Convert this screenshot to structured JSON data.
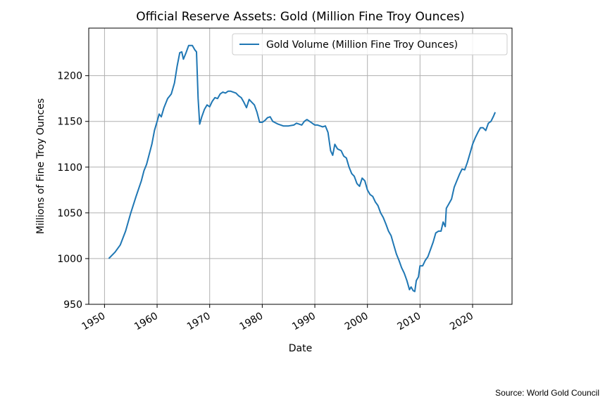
{
  "chart_data": {
    "type": "line",
    "title": "Official Reserve Assets: Gold (Million Fine Troy Ounces)",
    "xlabel": "Date",
    "ylabel": "Millions of Fine Troy Ounces",
    "xlim": [
      1947,
      2027.5
    ],
    "ylim": [
      950,
      1252
    ],
    "xticks": [
      1950,
      1960,
      1970,
      1980,
      1990,
      2000,
      2010,
      2020
    ],
    "yticks": [
      950,
      1000,
      1050,
      1100,
      1150,
      1200
    ],
    "grid": true,
    "legend_position": "top-right",
    "series": [
      {
        "name": "Gold Volume (Million Fine Troy Ounces)",
        "color": "#1f77b4",
        "points": [
          [
            1950.8,
            1000
          ],
          [
            1952,
            1007
          ],
          [
            1953,
            1015
          ],
          [
            1954,
            1030
          ],
          [
            1955,
            1050
          ],
          [
            1956,
            1068
          ],
          [
            1957,
            1085
          ],
          [
            1957.5,
            1096
          ],
          [
            1958,
            1103
          ],
          [
            1959,
            1125
          ],
          [
            1959.5,
            1140
          ],
          [
            1960,
            1150
          ],
          [
            1960.4,
            1158
          ],
          [
            1960.8,
            1155
          ],
          [
            1961.3,
            1165
          ],
          [
            1962,
            1175
          ],
          [
            1962.7,
            1180
          ],
          [
            1963.3,
            1192
          ],
          [
            1963.8,
            1210
          ],
          [
            1964.3,
            1225
          ],
          [
            1964.7,
            1226
          ],
          [
            1965,
            1218
          ],
          [
            1965.5,
            1225
          ],
          [
            1966,
            1233
          ],
          [
            1966.7,
            1233
          ],
          [
            1967.2,
            1228
          ],
          [
            1967.5,
            1226
          ],
          [
            1967.8,
            1175
          ],
          [
            1968.1,
            1147
          ],
          [
            1968.5,
            1155
          ],
          [
            1969,
            1163
          ],
          [
            1969.5,
            1168
          ],
          [
            1970,
            1166
          ],
          [
            1970.5,
            1172
          ],
          [
            1971,
            1176
          ],
          [
            1971.5,
            1175
          ],
          [
            1972,
            1180
          ],
          [
            1972.5,
            1182
          ],
          [
            1973,
            1181
          ],
          [
            1973.5,
            1183
          ],
          [
            1974,
            1183
          ],
          [
            1975,
            1181
          ],
          [
            1975.5,
            1178
          ],
          [
            1976,
            1176
          ],
          [
            1976.5,
            1171
          ],
          [
            1977,
            1165
          ],
          [
            1977.5,
            1174
          ],
          [
            1978,
            1171
          ],
          [
            1978.5,
            1168
          ],
          [
            1979,
            1160
          ],
          [
            1979.5,
            1149
          ],
          [
            1980,
            1149
          ],
          [
            1980.5,
            1151
          ],
          [
            1981,
            1154
          ],
          [
            1981.5,
            1155
          ],
          [
            1982,
            1150
          ],
          [
            1983,
            1147
          ],
          [
            1984,
            1145
          ],
          [
            1985,
            1145
          ],
          [
            1986,
            1146
          ],
          [
            1986.5,
            1148
          ],
          [
            1987,
            1147
          ],
          [
            1987.5,
            1146
          ],
          [
            1988,
            1150
          ],
          [
            1988.5,
            1152
          ],
          [
            1989,
            1150
          ],
          [
            1989.5,
            1148
          ],
          [
            1990,
            1146
          ],
          [
            1990.5,
            1146
          ],
          [
            1991,
            1145
          ],
          [
            1991.5,
            1144
          ],
          [
            1992,
            1145
          ],
          [
            1992.5,
            1138
          ],
          [
            1993,
            1118
          ],
          [
            1993.4,
            1113
          ],
          [
            1993.8,
            1125
          ],
          [
            1994.3,
            1120
          ],
          [
            1995,
            1118
          ],
          [
            1995.5,
            1112
          ],
          [
            1996,
            1110
          ],
          [
            1996.5,
            1100
          ],
          [
            1997,
            1093
          ],
          [
            1997.5,
            1090
          ],
          [
            1998,
            1082
          ],
          [
            1998.5,
            1079
          ],
          [
            1999,
            1088
          ],
          [
            1999.5,
            1085
          ],
          [
            2000,
            1075
          ],
          [
            2000.5,
            1070
          ],
          [
            2001,
            1068
          ],
          [
            2001.5,
            1062
          ],
          [
            2002,
            1058
          ],
          [
            2002.5,
            1050
          ],
          [
            2003,
            1045
          ],
          [
            2003.5,
            1038
          ],
          [
            2004,
            1030
          ],
          [
            2004.5,
            1025
          ],
          [
            2005,
            1015
          ],
          [
            2005.5,
            1005
          ],
          [
            2006,
            998
          ],
          [
            2006.5,
            990
          ],
          [
            2007,
            984
          ],
          [
            2007.5,
            976
          ],
          [
            2008,
            966
          ],
          [
            2008.3,
            969
          ],
          [
            2008.7,
            965
          ],
          [
            2009,
            964
          ],
          [
            2009.3,
            976
          ],
          [
            2009.7,
            980
          ],
          [
            2010,
            992
          ],
          [
            2010.5,
            992
          ],
          [
            2011,
            998
          ],
          [
            2011.5,
            1002
          ],
          [
            2012,
            1010
          ],
          [
            2012.5,
            1018
          ],
          [
            2013,
            1028
          ],
          [
            2013.5,
            1030
          ],
          [
            2014,
            1030
          ],
          [
            2014.4,
            1040
          ],
          [
            2014.8,
            1035
          ],
          [
            2015,
            1055
          ],
          [
            2015.5,
            1060
          ],
          [
            2016,
            1065
          ],
          [
            2016.5,
            1078
          ],
          [
            2017,
            1085
          ],
          [
            2017.5,
            1092
          ],
          [
            2018,
            1098
          ],
          [
            2018.5,
            1097
          ],
          [
            2019,
            1105
          ],
          [
            2019.5,
            1115
          ],
          [
            2020,
            1125
          ],
          [
            2020.5,
            1132
          ],
          [
            2021,
            1138
          ],
          [
            2021.5,
            1143
          ],
          [
            2022,
            1143
          ],
          [
            2022.5,
            1140
          ],
          [
            2023,
            1148
          ],
          [
            2023.5,
            1150
          ],
          [
            2024,
            1156
          ],
          [
            2024.3,
            1160
          ]
        ]
      }
    ],
    "source": "Source: World Gold Council"
  }
}
